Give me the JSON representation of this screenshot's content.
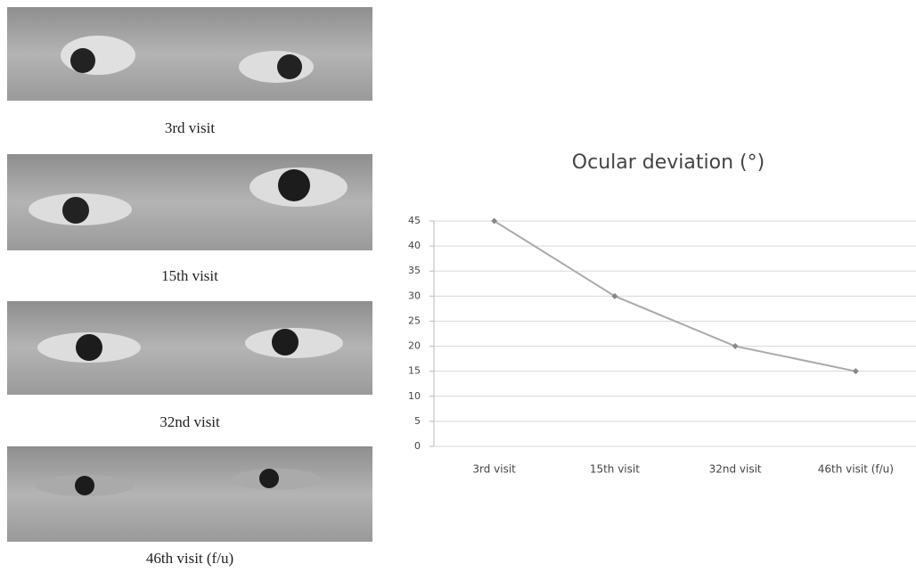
{
  "photos": [
    {
      "caption": "3rd visit"
    },
    {
      "caption": "15th visit"
    },
    {
      "caption": "32nd visit"
    },
    {
      "caption": "46th visit (f/u)"
    }
  ],
  "chart_data": {
    "type": "line",
    "title": "Ocular deviation (°)",
    "categories": [
      "3rd visit",
      "15th visit",
      "32nd visit",
      "46th visit (f/u)"
    ],
    "values": [
      45,
      30,
      20,
      15
    ],
    "color": "#aaaaaa",
    "ylim": [
      0,
      45
    ],
    "yticks": [
      0,
      5,
      10,
      15,
      20,
      25,
      30,
      35,
      40,
      45
    ],
    "grid": true
  }
}
